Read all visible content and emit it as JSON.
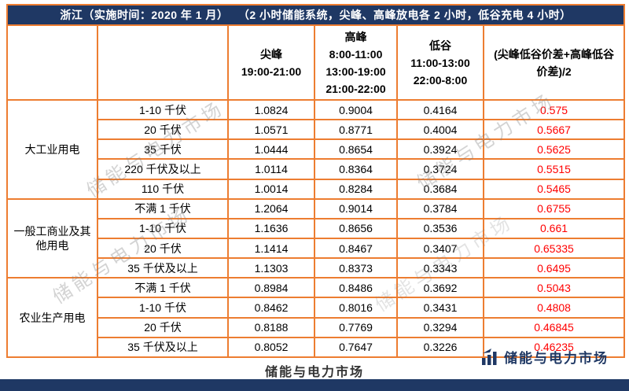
{
  "page": {
    "title_region": "浙江（实施时间：2020 年 1 月）",
    "title_note": "（2 小时储能系统，尖峰、高峰放电各 2 小时，低谷充电 4 小时）",
    "watermark": "储能与电力市场",
    "footer_text": "储能与电力市场",
    "logo_text": "储能与电力市场"
  },
  "colors": {
    "navy": "#1f3864",
    "orange": "#ed7d31",
    "red": "#ff0000"
  },
  "table": {
    "headers": {
      "jianfeng_title": "尖峰",
      "jianfeng_time": "19:00-21:00",
      "gaofeng_title": "高峰",
      "gaofeng_times": [
        "8:00-11:00",
        "13:00-19:00",
        "21:00-22:00"
      ],
      "digu_title": "低谷",
      "digu_times": [
        "11:00-13:00",
        "22:00-8:00"
      ],
      "diff_title": "(尖峰低谷价差+高峰低谷价差)/2"
    },
    "groups": [
      {
        "category": "大工业用电",
        "rows": [
          {
            "voltage": "1-10 千伏",
            "jianfeng": "1.0824",
            "gaofeng": "0.9004",
            "digu": "0.4164",
            "diff": "0.575"
          },
          {
            "voltage": "20 千伏",
            "jianfeng": "1.0571",
            "gaofeng": "0.8771",
            "digu": "0.4004",
            "diff": "0.5667"
          },
          {
            "voltage": "35 千伏",
            "jianfeng": "1.0444",
            "gaofeng": "0.8654",
            "digu": "0.3924",
            "diff": "0.5625"
          },
          {
            "voltage": "220 千伏及以上",
            "jianfeng": "1.0114",
            "gaofeng": "0.8364",
            "digu": "0.3724",
            "diff": "0.5515"
          },
          {
            "voltage": "110 千伏",
            "jianfeng": "1.0014",
            "gaofeng": "0.8284",
            "digu": "0.3684",
            "diff": "0.5465"
          }
        ]
      },
      {
        "category": "一般工商业及其他用电",
        "rows": [
          {
            "voltage": "不满 1 千伏",
            "jianfeng": "1.2064",
            "gaofeng": "0.9014",
            "digu": "0.3784",
            "diff": "0.6755"
          },
          {
            "voltage": "1-10 千伏",
            "jianfeng": "1.1636",
            "gaofeng": "0.8656",
            "digu": "0.3536",
            "diff": "0.661"
          },
          {
            "voltage": "20 千伏",
            "jianfeng": "1.1414",
            "gaofeng": "0.8467",
            "digu": "0.3407",
            "diff": "0.65335"
          },
          {
            "voltage": "35 千伏及以上",
            "jianfeng": "1.1303",
            "gaofeng": "0.8373",
            "digu": "0.3343",
            "diff": "0.6495"
          }
        ]
      },
      {
        "category": "农业生产用电",
        "rows": [
          {
            "voltage": "不满 1 千伏",
            "jianfeng": "0.8984",
            "gaofeng": "0.8486",
            "digu": "0.3692",
            "diff": "0.5043"
          },
          {
            "voltage": "1-10 千伏",
            "jianfeng": "0.8462",
            "gaofeng": "0.8016",
            "digu": "0.3431",
            "diff": "0.4808"
          },
          {
            "voltage": "20 千伏",
            "jianfeng": "0.8188",
            "gaofeng": "0.7769",
            "digu": "0.3294",
            "diff": "0.46845"
          },
          {
            "voltage": "35 千伏及以上",
            "jianfeng": "0.8052",
            "gaofeng": "0.7647",
            "digu": "0.3226",
            "diff": "0.46235"
          }
        ]
      }
    ]
  }
}
